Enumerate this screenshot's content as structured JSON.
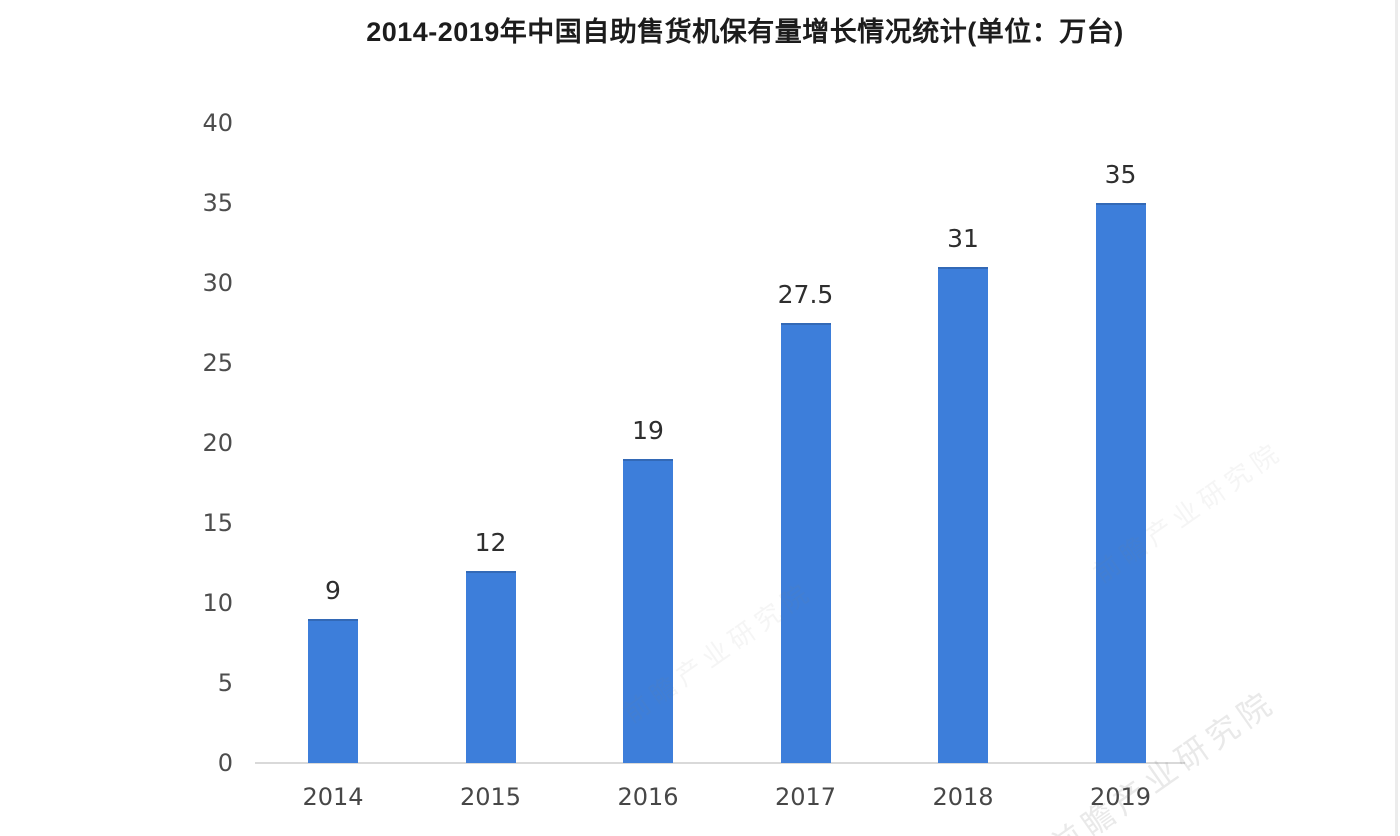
{
  "page": {
    "background": "#ffffff"
  },
  "chart_data": {
    "type": "bar",
    "title": "2014-2019年中国自助售货机保有量增长情况统计(单位：万台)",
    "categories": [
      "2014",
      "2015",
      "2016",
      "2017",
      "2018",
      "2019"
    ],
    "values": [
      9,
      12,
      19,
      27.5,
      31,
      35
    ],
    "value_labels": [
      "9",
      "12",
      "19",
      "27.5",
      "31",
      "35"
    ],
    "yticks": [
      0,
      5,
      10,
      15,
      20,
      25,
      30,
      35,
      40
    ],
    "ylim": [
      0,
      40
    ],
    "unit": "万台",
    "grid": false,
    "legend": null,
    "bar_color": "#3D7EDA",
    "axis_line_color": "#D9D9D9",
    "tick_label_color": "#4D4D4D",
    "value_label_color": "#2E2E2E",
    "title_color": "#1C1C1C"
  },
  "watermark": {
    "text": "前瞻产业研究院",
    "color": "rgba(130,130,130,0.12)"
  }
}
